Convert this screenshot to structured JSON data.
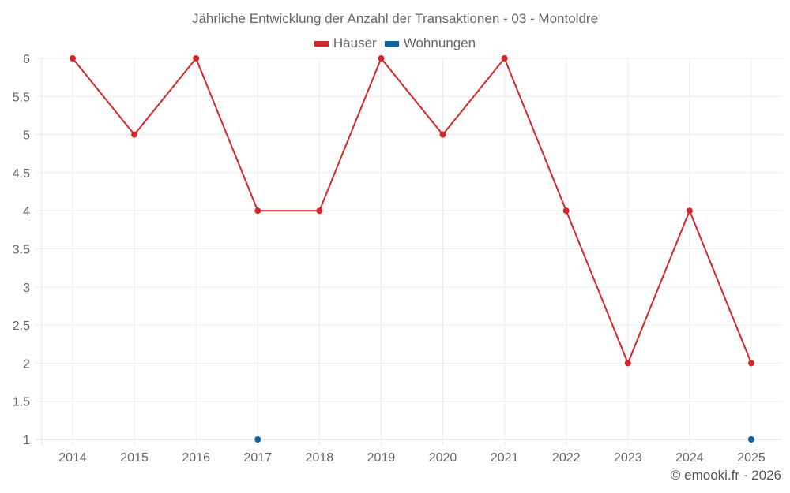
{
  "header": {
    "title": "Jährliche Entwicklung der Anzahl der Transaktionen - 03 - Montoldre"
  },
  "legend": {
    "items": [
      {
        "label": "Häuser",
        "color": "#d62728"
      },
      {
        "label": "Wohnungen",
        "color": "#0b64a0"
      }
    ]
  },
  "footer": {
    "credit": "© emooki.fr - 2026"
  },
  "chart_data": {
    "type": "line",
    "title": "Jährliche Entwicklung der Anzahl der Transaktionen - 03 - Montoldre",
    "xlabel": "",
    "ylabel": "",
    "categories": [
      "2014",
      "2015",
      "2016",
      "2017",
      "2018",
      "2019",
      "2020",
      "2021",
      "2022",
      "2023",
      "2024",
      "2025"
    ],
    "series": [
      {
        "name": "Häuser",
        "color": "#d62728",
        "values": [
          6,
          5,
          6,
          4,
          4,
          6,
          5,
          6,
          4,
          2,
          4,
          2
        ]
      },
      {
        "name": "Wohnungen",
        "color": "#0b64a0",
        "values": [
          null,
          null,
          null,
          1,
          null,
          null,
          null,
          null,
          null,
          null,
          null,
          1
        ]
      }
    ],
    "yticks": [
      "1",
      "1.5",
      "2",
      "2.5",
      "3",
      "3.5",
      "4",
      "4.5",
      "5",
      "5.5",
      "6"
    ],
    "ylim": [
      1,
      6
    ],
    "grid": true,
    "legend_position": "top"
  }
}
